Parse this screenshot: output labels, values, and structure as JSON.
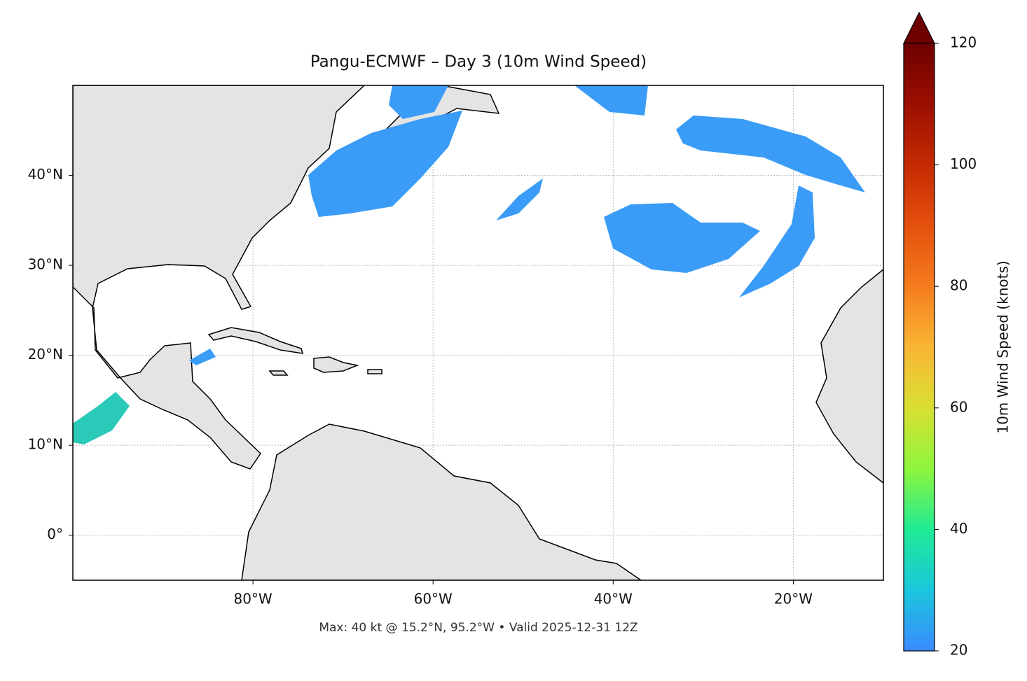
{
  "map": {
    "title": "Pangu-ECMWF – Day 3 (10m Wind Speed)",
    "footer": "Max: 40 kt @ 15.2°N, 95.2°W • Valid 2025-12-31 12Z",
    "xlim": [
      -100,
      -10
    ],
    "ylim": [
      -5,
      50
    ],
    "xticks": [
      {
        "value": -80,
        "label": "80°W"
      },
      {
        "value": -60,
        "label": "60°W"
      },
      {
        "value": -40,
        "label": "40°W"
      },
      {
        "value": -20,
        "label": "20°W"
      }
    ],
    "yticks": [
      {
        "value": 40,
        "label": "40°N"
      },
      {
        "value": 30,
        "label": "30°N"
      },
      {
        "value": 20,
        "label": "20°N"
      },
      {
        "value": 10,
        "label": "10°N"
      },
      {
        "value": 0,
        "label": "0°"
      }
    ],
    "grid": true,
    "colorbar": {
      "label": "10m Wind Speed (knots)",
      "lim": [
        20,
        120
      ],
      "ticks": [
        20,
        40,
        60,
        80,
        100,
        120
      ],
      "colors": [
        "#3b8bff",
        "#1ac6dc",
        "#20eb95",
        "#8ef53c",
        "#d9df33",
        "#f9b534",
        "#f57c1e",
        "#e4500e",
        "#c52a03",
        "#9b0f01",
        "#6e0000"
      ]
    }
  }
}
